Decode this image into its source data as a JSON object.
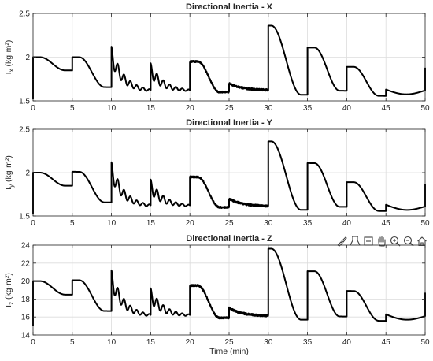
{
  "figure": {
    "colors": {
      "line": "#000000",
      "grid": "#dcdcdc",
      "axis": "#262626",
      "text": "#262626",
      "toolbar_icon": "#404040"
    },
    "toolbar": {
      "icons": [
        "brush-icon",
        "data-cursor-icon",
        "link-icon",
        "pan-hand-icon",
        "zoom-in-icon",
        "zoom-out-icon",
        "home-icon"
      ]
    }
  },
  "chart_data": [
    {
      "type": "line",
      "title": "Directional Inertia - X",
      "ylabel": "I",
      "ylabel_sub": "x",
      "ylabel_unit": "(kg·m²)",
      "xlabel": "",
      "xlim": [
        0,
        50
      ],
      "ylim": [
        1.5,
        2.5
      ],
      "xticks": [
        0,
        5,
        10,
        15,
        20,
        25,
        30,
        35,
        40,
        45,
        50
      ],
      "xtick_labels": [
        "0",
        "5",
        "10",
        "15",
        "20",
        "25",
        "30",
        "35",
        "40",
        "45",
        "50"
      ],
      "yticks": [
        1.5,
        2,
        2.5
      ],
      "ytick_labels": [
        "1.5",
        "2",
        "2.5"
      ],
      "grid": true,
      "segments": [
        {
          "t0": 0,
          "t1": 5,
          "start": 2.0,
          "end": 1.85,
          "shape": "smooth-drop",
          "initial_spike": 1.52
        },
        {
          "t0": 5,
          "t1": 10,
          "start": 2.0,
          "end": 1.66,
          "shape": "smooth-drop"
        },
        {
          "t0": 10,
          "t1": 15,
          "start": 2.02,
          "end": 1.62,
          "shape": "oscillating-drop",
          "osc_amp": 0.1
        },
        {
          "t0": 15,
          "t1": 20,
          "start": 1.85,
          "end": 1.62,
          "shape": "oscillating-drop",
          "osc_amp": 0.08
        },
        {
          "t0": 20,
          "t1": 25,
          "start": 1.95,
          "end": 1.6,
          "shape": "noisy-drop"
        },
        {
          "t0": 25,
          "t1": 30,
          "start": 1.7,
          "end": 1.62,
          "shape": "noisy-flat"
        },
        {
          "t0": 30,
          "t1": 35,
          "start": 2.36,
          "end": 1.57,
          "shape": "large-drop"
        },
        {
          "t0": 35,
          "t1": 40,
          "start": 2.11,
          "end": 1.62,
          "shape": "smooth-drop"
        },
        {
          "t0": 40,
          "t1": 45,
          "start": 1.89,
          "end": 1.56,
          "shape": "smooth-drop"
        },
        {
          "t0": 45,
          "t1": 50,
          "start": 1.63,
          "end": 1.62,
          "shape": "dip",
          "min": 1.58,
          "final_spike": 1.88
        }
      ]
    },
    {
      "type": "line",
      "title": "Directional Inertia - Y",
      "ylabel": "I",
      "ylabel_sub": "y",
      "ylabel_unit": "(kg·m²)",
      "xlabel": "",
      "xlim": [
        0,
        50
      ],
      "ylim": [
        1.5,
        2.5
      ],
      "xticks": [
        0,
        5,
        10,
        15,
        20,
        25,
        30,
        35,
        40,
        45,
        50
      ],
      "xtick_labels": [
        "0",
        "5",
        "10",
        "15",
        "20",
        "25",
        "30",
        "35",
        "40",
        "45",
        "50"
      ],
      "yticks": [
        1.5,
        2,
        2.5
      ],
      "ytick_labels": [
        "1.5",
        "2",
        "2.5"
      ],
      "grid": true,
      "segments": [
        {
          "t0": 0,
          "t1": 5,
          "start": 2.0,
          "end": 1.85,
          "shape": "smooth-drop",
          "initial_spike": 1.52
        },
        {
          "t0": 5,
          "t1": 10,
          "start": 2.01,
          "end": 1.66,
          "shape": "smooth-drop"
        },
        {
          "t0": 10,
          "t1": 15,
          "start": 2.02,
          "end": 1.62,
          "shape": "oscillating-drop",
          "osc_amp": 0.1
        },
        {
          "t0": 15,
          "t1": 20,
          "start": 1.84,
          "end": 1.62,
          "shape": "oscillating-drop",
          "osc_amp": 0.08
        },
        {
          "t0": 20,
          "t1": 25,
          "start": 1.95,
          "end": 1.6,
          "shape": "noisy-drop"
        },
        {
          "t0": 25,
          "t1": 30,
          "start": 1.7,
          "end": 1.61,
          "shape": "noisy-flat"
        },
        {
          "t0": 30,
          "t1": 35,
          "start": 2.36,
          "end": 1.57,
          "shape": "large-drop"
        },
        {
          "t0": 35,
          "t1": 40,
          "start": 2.11,
          "end": 1.61,
          "shape": "smooth-drop"
        },
        {
          "t0": 40,
          "t1": 45,
          "start": 1.89,
          "end": 1.56,
          "shape": "smooth-drop"
        },
        {
          "t0": 45,
          "t1": 50,
          "start": 1.63,
          "end": 1.61,
          "shape": "dip",
          "min": 1.58,
          "final_spike": 1.87
        }
      ]
    },
    {
      "type": "line",
      "title": "Directional Inertia - Z",
      "ylabel": "I",
      "ylabel_sub": "z",
      "ylabel_unit": "(kg·m²)",
      "xlabel": "Time (min)",
      "xlim": [
        0,
        50
      ],
      "ylim": [
        14,
        24
      ],
      "xticks": [
        0,
        5,
        10,
        15,
        20,
        25,
        30,
        35,
        40,
        45,
        50
      ],
      "xtick_labels": [
        "0",
        "5",
        "10",
        "15",
        "20",
        "25",
        "30",
        "35",
        "40",
        "45",
        "50"
      ],
      "yticks": [
        14,
        16,
        18,
        20,
        22,
        24
      ],
      "ytick_labels": [
        "14",
        "16",
        "18",
        "20",
        "22",
        "24"
      ],
      "grid": true,
      "segments": [
        {
          "t0": 0,
          "t1": 5,
          "start": 20.0,
          "end": 18.5,
          "shape": "smooth-drop",
          "initial_spike": 15.0
        },
        {
          "t0": 5,
          "t1": 10,
          "start": 20.1,
          "end": 16.7,
          "shape": "smooth-drop"
        },
        {
          "t0": 10,
          "t1": 15,
          "start": 20.2,
          "end": 16.2,
          "shape": "oscillating-drop",
          "osc_amp": 1.0
        },
        {
          "t0": 15,
          "t1": 20,
          "start": 18.4,
          "end": 16.2,
          "shape": "oscillating-drop",
          "osc_amp": 0.8
        },
        {
          "t0": 20,
          "t1": 25,
          "start": 19.5,
          "end": 15.9,
          "shape": "noisy-drop"
        },
        {
          "t0": 25,
          "t1": 30,
          "start": 17.0,
          "end": 16.1,
          "shape": "noisy-flat"
        },
        {
          "t0": 30,
          "t1": 35,
          "start": 23.6,
          "end": 15.7,
          "shape": "large-drop"
        },
        {
          "t0": 35,
          "t1": 40,
          "start": 21.1,
          "end": 16.1,
          "shape": "smooth-drop"
        },
        {
          "t0": 40,
          "t1": 45,
          "start": 18.9,
          "end": 15.6,
          "shape": "smooth-drop"
        },
        {
          "t0": 45,
          "t1": 50,
          "start": 16.3,
          "end": 16.1,
          "shape": "dip",
          "min": 15.8,
          "final_spike": 18.7
        }
      ]
    }
  ]
}
